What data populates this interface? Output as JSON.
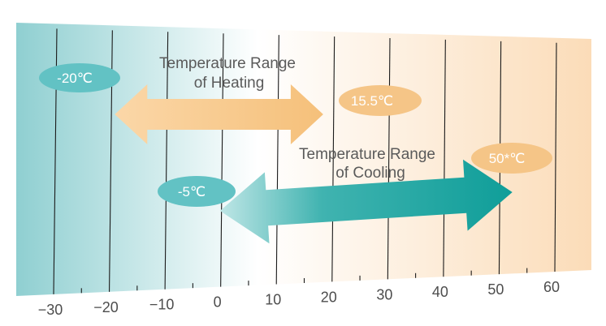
{
  "chart_data": {
    "type": "range-diagram",
    "axis_ticks": [
      "−30",
      "−20",
      "−10",
      "0",
      "10",
      "20",
      "30",
      "40",
      "50",
      "60"
    ],
    "axis_range": [
      -30,
      60
    ],
    "ranges": [
      {
        "title_line1": "Temperature Range",
        "title_line2": "of Heating",
        "min_label": "-20℃",
        "max_label": "15.5℃",
        "min": -20,
        "max": 15.5,
        "color": "#f8cf98"
      },
      {
        "title_line1": "Temperature Range",
        "title_line2": "of Cooling",
        "min_label": "-5℃",
        "max_label": "50*℃",
        "min": -5,
        "max": 50,
        "color": "#1fa9a4"
      }
    ],
    "colors": {
      "cold": "#8fcfd1",
      "warm": "#fbdcb8",
      "heating_pill": "#f5c587",
      "cooling_pill": "#62c2c4"
    }
  }
}
